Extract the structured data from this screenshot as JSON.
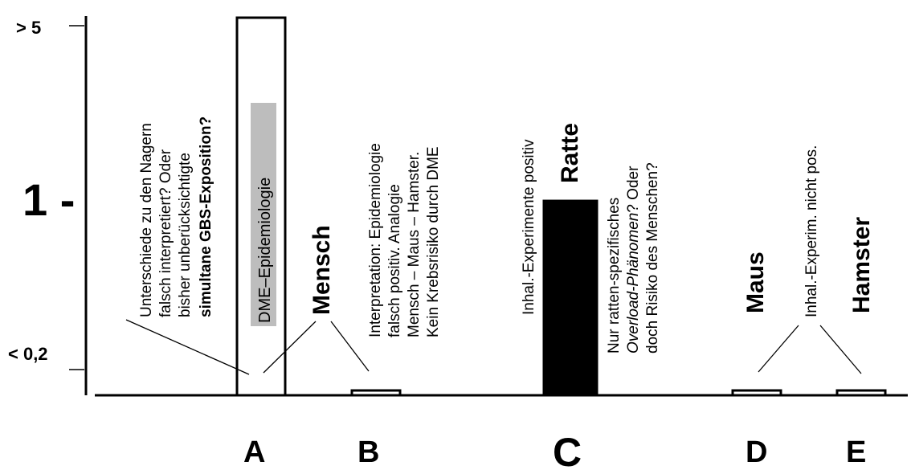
{
  "chart_data": {
    "type": "bar",
    "categories": [
      "A",
      "B",
      "C",
      "D",
      "E"
    ],
    "values": [
      6,
      0.13,
      0.97,
      0.13,
      0.14
    ],
    "y_scale": "log",
    "ylim": [
      0.1,
      6.2
    ],
    "y_ticks": [
      {
        "value": 5,
        "label": "> 5"
      },
      {
        "value": 1,
        "label": "1 -"
      },
      {
        "value": 0.2,
        "label": "< 0,2"
      }
    ],
    "bar_fills": [
      "#ffffff",
      "#ffffff",
      "#000000",
      "#ffffff",
      "#ffffff"
    ],
    "bar_labels": {
      "A": "DME–Epidemiologie",
      "B": "Mensch",
      "C": "Ratte",
      "D": "Maus",
      "E": "Hamster"
    },
    "annotations": {
      "a1": {
        "l1": "Unterschiede zu den Nagern",
        "l2": "falsch interpretiert?  Oder",
        "l3": "bisher unberücksichtigte",
        "l4": "simultane GBS-Exposition?"
      },
      "b1": {
        "l1": "Interpretation: Epidemiologie",
        "l2": "falsch positiv.  Analogie",
        "l3": "Mensch – Maus – Hamster.",
        "l4": "Kein Krebsrisiko durch DME"
      },
      "c1": {
        "l1": "Inhal.-Experimente positiv"
      },
      "c2": {
        "l1": "Nur ratten-spezifisches",
        "l2": "Overload-Phänomen",
        "l2b": "? Oder",
        "l3": "doch Risiko des Menschen?"
      },
      "d1": {
        "l1": "Inhal.-Experim.  nicht pos."
      }
    },
    "grid": false,
    "legend": "none"
  }
}
